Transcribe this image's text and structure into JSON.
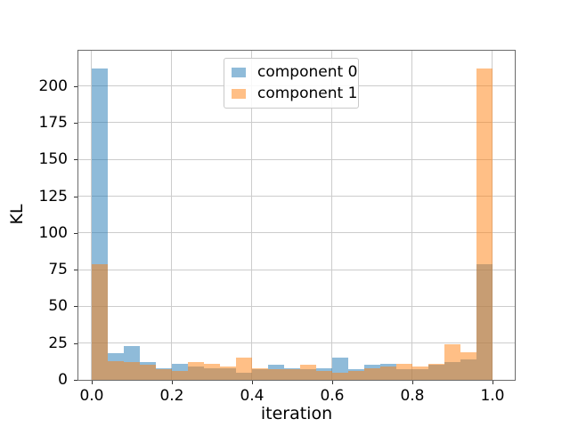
{
  "chart_data": {
    "type": "bar",
    "subtype": "histogram",
    "title": "",
    "xlabel": "iteration",
    "ylabel": "KL",
    "bin_edges": [
      0.0,
      0.04,
      0.08,
      0.12,
      0.16,
      0.2,
      0.24,
      0.28,
      0.32,
      0.36,
      0.4,
      0.44,
      0.48,
      0.52,
      0.56,
      0.6,
      0.64,
      0.68,
      0.72,
      0.76,
      0.8,
      0.84,
      0.88,
      0.92,
      0.96,
      1.0
    ],
    "series": [
      {
        "name": "component 0",
        "color": "#1f77b4",
        "fill_alpha": 0.5,
        "values": [
          212,
          18,
          23,
          12,
          8,
          11,
          9,
          8,
          8,
          5,
          7,
          10,
          8,
          7,
          8,
          15,
          7,
          10,
          11,
          7,
          7,
          10,
          12,
          14,
          79
        ]
      },
      {
        "name": "component 1",
        "color": "#ff7f0e",
        "fill_alpha": 0.5,
        "values": [
          79,
          13,
          12,
          10,
          7,
          6,
          12,
          11,
          9,
          15,
          8,
          7,
          7,
          10,
          6,
          5,
          6,
          8,
          9,
          11,
          9,
          11,
          24,
          19,
          212
        ]
      }
    ],
    "x_ticks": {
      "values": [
        0.0,
        0.2,
        0.4,
        0.6,
        0.8,
        1.0
      ],
      "labels": [
        "0.0",
        "0.2",
        "0.4",
        "0.6",
        "0.8",
        "1.0"
      ]
    },
    "y_ticks": {
      "values": [
        0,
        25,
        50,
        75,
        100,
        125,
        150,
        175,
        200
      ],
      "labels": [
        "0",
        "25",
        "50",
        "75",
        "100",
        "125",
        "150",
        "175",
        "200"
      ]
    },
    "xlim": [
      -0.0333,
      1.0556
    ],
    "ylim": [
      0,
      224
    ],
    "grid": true,
    "legend": {
      "position": "upper center",
      "entries": [
        "component 0",
        "component 1"
      ]
    }
  },
  "colors": {
    "background": "#ffffff",
    "grid": "#cccccc",
    "spine": "#6b6b6b",
    "text": "#000000",
    "legend_border": "#c9c9c9",
    "overlap_brown": "#c79d74"
  }
}
